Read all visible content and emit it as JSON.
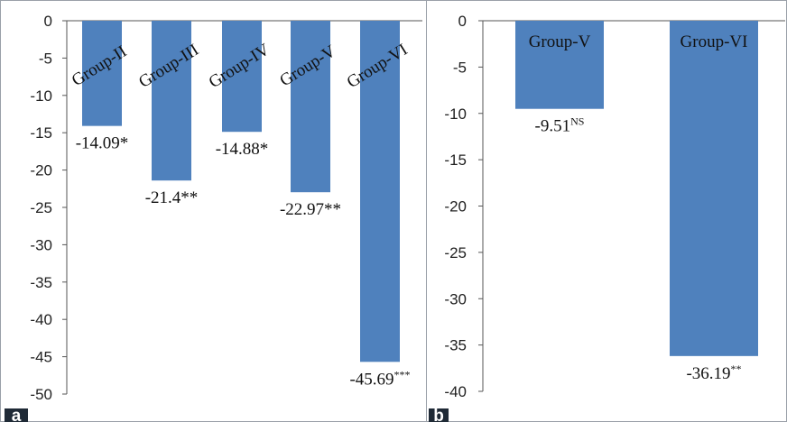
{
  "chart_data": [
    {
      "panel_label": "a",
      "type": "bar",
      "categories": [
        "Group-II",
        "Group-III",
        "Group-IV",
        "Group-V",
        "Group-VI"
      ],
      "values": [
        -14.09,
        -21.4,
        -14.88,
        -22.97,
        -45.69
      ],
      "data_labels": [
        {
          "text": "-14.09*",
          "sup": ""
        },
        {
          "text": "-21.4**",
          "sup": ""
        },
        {
          "text": "-14.88*",
          "sup": ""
        },
        {
          "text": "-22.97**",
          "sup": ""
        },
        {
          "text": "-45.69",
          "sup": "***"
        }
      ],
      "ylim": [
        -50,
        0
      ],
      "yticks": [
        "0",
        "-5",
        "-10",
        "-15",
        "-20",
        "-25",
        "-30",
        "-35",
        "-40",
        "-45",
        "-50"
      ],
      "category_label_rotation": "diagonal",
      "grid": false,
      "bar_color": "#4f81bd"
    },
    {
      "panel_label": "b",
      "type": "bar",
      "categories": [
        "Group-V",
        "Group-VI"
      ],
      "values": [
        -9.51,
        -36.19
      ],
      "data_labels": [
        {
          "text": "-9.51",
          "sup": "NS"
        },
        {
          "text": "-36.19",
          "sup": "**"
        }
      ],
      "ylim": [
        -40,
        0
      ],
      "yticks": [
        "0",
        "-5",
        "-10",
        "-15",
        "-20",
        "-25",
        "-30",
        "-35",
        "-40"
      ],
      "category_label_rotation": "horizontal",
      "grid": false,
      "bar_color": "#4f81bd"
    }
  ]
}
